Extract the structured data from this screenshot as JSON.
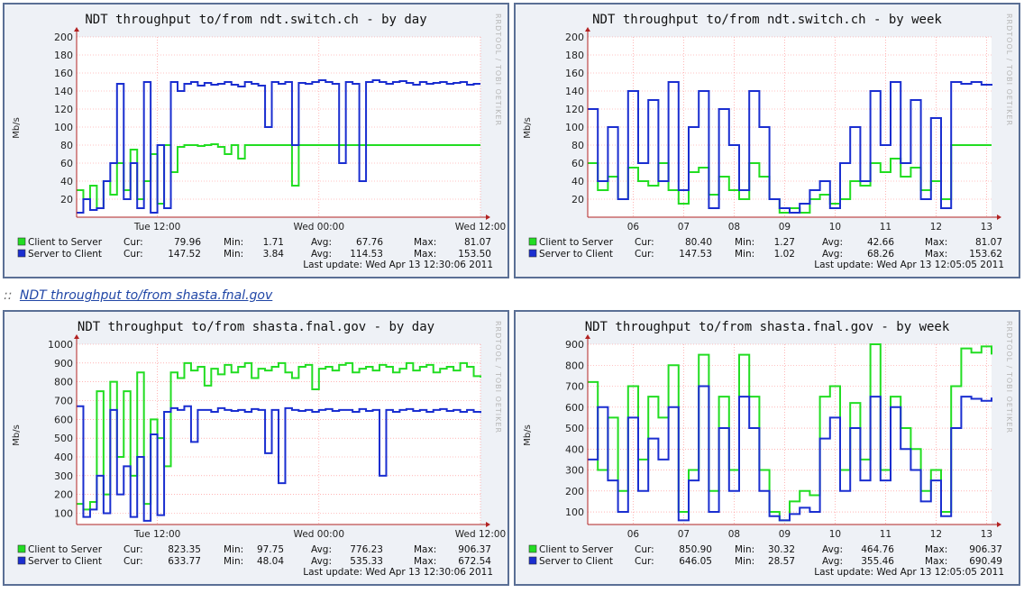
{
  "section_caption": {
    "prefix": "::",
    "link_text": "NDT throughput to/from shasta.fnal.gov"
  },
  "watermark": "RRDTOOL / TOBI OETIKER",
  "colors": {
    "client_to_server": "#22dd22",
    "server_to_client": "#1a2ed0",
    "grid": "#ff8888",
    "axis": "#b22222",
    "panel_bg": "#eef1f6",
    "plot_bg": "#ffffff",
    "border": "#5a6f95"
  },
  "chart_data": [
    {
      "id": "switch-day",
      "type": "line",
      "title": "NDT throughput to/from ndt.switch.ch - by day",
      "ylabel": "Mb/s",
      "ylim": [
        0,
        200
      ],
      "yticks": [
        20,
        40,
        60,
        80,
        100,
        120,
        140,
        160,
        180,
        200
      ],
      "xlim": [
        0,
        30
      ],
      "xticks": [
        {
          "x": 6,
          "label": "Tue 12:00"
        },
        {
          "x": 18,
          "label": "Wed 00:00"
        },
        {
          "x": 30,
          "label": "Wed 12:00"
        }
      ],
      "series": [
        {
          "name": "Client to Server",
          "color": "#22dd22",
          "cur": "79.96",
          "min": "1.71",
          "avg": "67.76",
          "max": "81.07",
          "x": [
            0,
            0.5,
            1,
            1.5,
            2,
            2.5,
            3,
            3.5,
            4,
            4.5,
            5,
            5.5,
            6,
            6.5,
            7,
            7.5,
            8,
            8.5,
            9,
            9.5,
            10,
            10.5,
            11,
            11.5,
            12,
            12.5,
            13,
            13.5,
            14,
            14.5,
            15,
            15.5,
            16,
            16.5,
            17,
            17.5,
            18,
            18.5,
            19,
            19.5,
            20,
            20.5,
            21,
            21.5,
            22,
            22.5,
            23,
            23.5,
            24,
            24.5,
            25,
            25.5,
            26,
            26.5,
            27,
            27.5,
            28,
            28.5,
            29,
            29.5,
            30
          ],
          "y": [
            30,
            20,
            35,
            10,
            40,
            25,
            60,
            30,
            75,
            20,
            40,
            70,
            15,
            80,
            50,
            78,
            80,
            80,
            79,
            80,
            81,
            78,
            70,
            80,
            65,
            80,
            80,
            80,
            80,
            80,
            80,
            80,
            35,
            80,
            80,
            80,
            80,
            80,
            80,
            80,
            80,
            80,
            80,
            80,
            80,
            80,
            80,
            80,
            80,
            80,
            80,
            80,
            80,
            80,
            80,
            80,
            80,
            80,
            80,
            80,
            80
          ]
        },
        {
          "name": "Server to Client",
          "color": "#1a2ed0",
          "cur": "147.52",
          "min": "3.84",
          "avg": "114.53",
          "max": "153.50",
          "x": [
            0,
            0.5,
            1,
            1.5,
            2,
            2.5,
            3,
            3.5,
            4,
            4.5,
            5,
            5.5,
            6,
            6.5,
            7,
            7.5,
            8,
            8.5,
            9,
            9.5,
            10,
            10.5,
            11,
            11.5,
            12,
            12.5,
            13,
            13.5,
            14,
            14.5,
            15,
            15.5,
            16,
            16.5,
            17,
            17.5,
            18,
            18.5,
            19,
            19.5,
            20,
            20.5,
            21,
            21.5,
            22,
            22.5,
            23,
            23.5,
            24,
            24.5,
            25,
            25.5,
            26,
            26.5,
            27,
            27.5,
            28,
            28.5,
            29,
            29.5,
            30
          ],
          "y": [
            5,
            20,
            8,
            10,
            40,
            60,
            148,
            20,
            60,
            10,
            150,
            5,
            80,
            10,
            150,
            140,
            148,
            150,
            146,
            149,
            147,
            148,
            150,
            147,
            145,
            150,
            148,
            146,
            100,
            150,
            148,
            150,
            80,
            149,
            148,
            150,
            152,
            150,
            148,
            60,
            150,
            148,
            40,
            150,
            152,
            150,
            148,
            150,
            151,
            149,
            147,
            150,
            148,
            149,
            150,
            148,
            149,
            150,
            147,
            148,
            148
          ]
        }
      ],
      "last_update": "Last update: Wed Apr 13 12:30:06 2011"
    },
    {
      "id": "switch-week",
      "type": "line",
      "title": "NDT throughput to/from ndt.switch.ch - by week",
      "ylabel": "Mb/s",
      "ylim": [
        0,
        200
      ],
      "yticks": [
        20,
        40,
        60,
        80,
        100,
        120,
        140,
        160,
        180,
        200
      ],
      "xlim": [
        5.1,
        13.1
      ],
      "xticks": [
        {
          "x": 6,
          "label": "06"
        },
        {
          "x": 7,
          "label": "07"
        },
        {
          "x": 8,
          "label": "08"
        },
        {
          "x": 9,
          "label": "09"
        },
        {
          "x": 10,
          "label": "10"
        },
        {
          "x": 11,
          "label": "11"
        },
        {
          "x": 12,
          "label": "12"
        },
        {
          "x": 13,
          "label": "13"
        }
      ],
      "series": [
        {
          "name": "Client to Server",
          "color": "#22dd22",
          "cur": "80.40",
          "min": "1.27",
          "avg": "42.66",
          "max": "81.07",
          "x": [
            5.1,
            5.3,
            5.5,
            5.7,
            5.9,
            6.1,
            6.3,
            6.5,
            6.7,
            6.9,
            7.1,
            7.3,
            7.5,
            7.7,
            7.9,
            8.1,
            8.3,
            8.5,
            8.7,
            8.9,
            9.1,
            9.3,
            9.5,
            9.7,
            9.9,
            10.1,
            10.3,
            10.5,
            10.7,
            10.9,
            11.1,
            11.3,
            11.5,
            11.7,
            11.9,
            12.1,
            12.3,
            12.5,
            12.7,
            12.9,
            13.1
          ],
          "y": [
            60,
            30,
            45,
            20,
            55,
            40,
            35,
            60,
            30,
            15,
            50,
            55,
            25,
            45,
            30,
            20,
            60,
            45,
            20,
            5,
            10,
            5,
            20,
            25,
            15,
            20,
            40,
            35,
            60,
            50,
            65,
            45,
            55,
            30,
            40,
            20,
            80,
            80,
            80,
            80,
            80
          ]
        },
        {
          "name": "Server to Client",
          "color": "#1a2ed0",
          "cur": "147.53",
          "min": "1.02",
          "avg": "68.26",
          "max": "153.62",
          "x": [
            5.1,
            5.3,
            5.5,
            5.7,
            5.9,
            6.1,
            6.3,
            6.5,
            6.7,
            6.9,
            7.1,
            7.3,
            7.5,
            7.7,
            7.9,
            8.1,
            8.3,
            8.5,
            8.7,
            8.9,
            9.1,
            9.3,
            9.5,
            9.7,
            9.9,
            10.1,
            10.3,
            10.5,
            10.7,
            10.9,
            11.1,
            11.3,
            11.5,
            11.7,
            11.9,
            12.1,
            12.3,
            12.5,
            12.7,
            12.9,
            13.1
          ],
          "y": [
            120,
            40,
            100,
            20,
            140,
            60,
            130,
            40,
            150,
            30,
            100,
            140,
            10,
            120,
            80,
            30,
            140,
            100,
            20,
            10,
            5,
            15,
            30,
            40,
            10,
            60,
            100,
            40,
            140,
            80,
            150,
            60,
            130,
            20,
            110,
            10,
            150,
            148,
            150,
            147,
            148
          ]
        }
      ],
      "last_update": "Last update: Wed Apr 13 12:05:05 2011"
    },
    {
      "id": "fnal-day",
      "type": "line",
      "title": "NDT throughput to/from shasta.fnal.gov - by day",
      "ylabel": "Mb/s",
      "ylim": [
        40,
        1000
      ],
      "yticks": [
        100,
        200,
        300,
        400,
        500,
        600,
        700,
        800,
        900,
        1000
      ],
      "xlim": [
        0,
        30
      ],
      "xticks": [
        {
          "x": 6,
          "label": "Tue 12:00"
        },
        {
          "x": 18,
          "label": "Wed 00:00"
        },
        {
          "x": 30,
          "label": "Wed 12:00"
        }
      ],
      "series": [
        {
          "name": "Client to Server",
          "color": "#22dd22",
          "cur": "823.35",
          "min": "97.75",
          "avg": "776.23",
          "max": "906.37",
          "x": [
            0,
            0.5,
            1,
            1.5,
            2,
            2.5,
            3,
            3.5,
            4,
            4.5,
            5,
            5.5,
            6,
            6.5,
            7,
            7.5,
            8,
            8.5,
            9,
            9.5,
            10,
            10.5,
            11,
            11.5,
            12,
            12.5,
            13,
            13.5,
            14,
            14.5,
            15,
            15.5,
            16,
            16.5,
            17,
            17.5,
            18,
            18.5,
            19,
            19.5,
            20,
            20.5,
            21,
            21.5,
            22,
            22.5,
            23,
            23.5,
            24,
            24.5,
            25,
            25.5,
            26,
            26.5,
            27,
            27.5,
            28,
            28.5,
            29,
            29.5,
            30
          ],
          "y": [
            150,
            120,
            160,
            750,
            200,
            800,
            400,
            750,
            300,
            850,
            150,
            600,
            500,
            350,
            850,
            820,
            900,
            860,
            880,
            780,
            870,
            840,
            890,
            850,
            880,
            900,
            820,
            870,
            860,
            880,
            900,
            850,
            820,
            880,
            890,
            760,
            870,
            880,
            860,
            890,
            900,
            850,
            870,
            880,
            860,
            890,
            880,
            850,
            870,
            900,
            860,
            880,
            890,
            850,
            870,
            880,
            860,
            900,
            880,
            830,
            823
          ]
        },
        {
          "name": "Server to Client",
          "color": "#1a2ed0",
          "cur": "633.77",
          "min": "48.04",
          "avg": "535.33",
          "max": "672.54",
          "x": [
            0,
            0.5,
            1,
            1.5,
            2,
            2.5,
            3,
            3.5,
            4,
            4.5,
            5,
            5.5,
            6,
            6.5,
            7,
            7.5,
            8,
            8.5,
            9,
            9.5,
            10,
            10.5,
            11,
            11.5,
            12,
            12.5,
            13,
            13.5,
            14,
            14.5,
            15,
            15.5,
            16,
            16.5,
            17,
            17.5,
            18,
            18.5,
            19,
            19.5,
            20,
            20.5,
            21,
            21.5,
            22,
            22.5,
            23,
            23.5,
            24,
            24.5,
            25,
            25.5,
            26,
            26.5,
            27,
            27.5,
            28,
            28.5,
            29,
            29.5,
            30
          ],
          "y": [
            670,
            80,
            120,
            300,
            100,
            650,
            200,
            350,
            80,
            400,
            60,
            520,
            90,
            640,
            660,
            650,
            670,
            480,
            650,
            650,
            640,
            660,
            650,
            645,
            650,
            640,
            655,
            650,
            420,
            650,
            260,
            660,
            650,
            645,
            650,
            640,
            650,
            655,
            645,
            650,
            650,
            640,
            655,
            645,
            650,
            300,
            650,
            640,
            650,
            655,
            645,
            650,
            640,
            650,
            655,
            645,
            650,
            640,
            650,
            640,
            634
          ]
        }
      ],
      "last_update": "Last update: Wed Apr 13 12:30:06 2011"
    },
    {
      "id": "fnal-week",
      "type": "line",
      "title": "NDT throughput to/from shasta.fnal.gov - by week",
      "ylabel": "Mb/s",
      "ylim": [
        40,
        900
      ],
      "yticks": [
        100,
        200,
        300,
        400,
        500,
        600,
        700,
        800,
        900
      ],
      "xlim": [
        5.1,
        13.1
      ],
      "xticks": [
        {
          "x": 6,
          "label": "06"
        },
        {
          "x": 7,
          "label": "07"
        },
        {
          "x": 8,
          "label": "08"
        },
        {
          "x": 9,
          "label": "09"
        },
        {
          "x": 10,
          "label": "10"
        },
        {
          "x": 11,
          "label": "11"
        },
        {
          "x": 12,
          "label": "12"
        },
        {
          "x": 13,
          "label": "13"
        }
      ],
      "series": [
        {
          "name": "Client to Server",
          "color": "#22dd22",
          "cur": "850.90",
          "min": "30.32",
          "avg": "464.76",
          "max": "906.37",
          "x": [
            5.1,
            5.3,
            5.5,
            5.7,
            5.9,
            6.1,
            6.3,
            6.5,
            6.7,
            6.9,
            7.1,
            7.3,
            7.5,
            7.7,
            7.9,
            8.1,
            8.3,
            8.5,
            8.7,
            8.9,
            9.1,
            9.3,
            9.5,
            9.7,
            9.9,
            10.1,
            10.3,
            10.5,
            10.7,
            10.9,
            11.1,
            11.3,
            11.5,
            11.7,
            11.9,
            12.1,
            12.3,
            12.5,
            12.7,
            12.9,
            13.1
          ],
          "y": [
            720,
            300,
            550,
            200,
            700,
            350,
            650,
            550,
            800,
            100,
            300,
            850,
            200,
            650,
            300,
            850,
            650,
            300,
            100,
            60,
            150,
            200,
            180,
            650,
            700,
            300,
            620,
            350,
            900,
            300,
            650,
            500,
            400,
            200,
            300,
            100,
            700,
            880,
            860,
            890,
            851
          ]
        },
        {
          "name": "Server to Client",
          "color": "#1a2ed0",
          "cur": "646.05",
          "min": "28.57",
          "avg": "355.46",
          "max": "690.49",
          "x": [
            5.1,
            5.3,
            5.5,
            5.7,
            5.9,
            6.1,
            6.3,
            6.5,
            6.7,
            6.9,
            7.1,
            7.3,
            7.5,
            7.7,
            7.9,
            8.1,
            8.3,
            8.5,
            8.7,
            8.9,
            9.1,
            9.3,
            9.5,
            9.7,
            9.9,
            10.1,
            10.3,
            10.5,
            10.7,
            10.9,
            11.1,
            11.3,
            11.5,
            11.7,
            11.9,
            12.1,
            12.3,
            12.5,
            12.7,
            12.9,
            13.1
          ],
          "y": [
            350,
            600,
            250,
            100,
            550,
            200,
            450,
            350,
            600,
            60,
            250,
            700,
            100,
            500,
            200,
            650,
            500,
            200,
            80,
            60,
            90,
            120,
            100,
            450,
            550,
            200,
            500,
            250,
            650,
            250,
            600,
            400,
            300,
            150,
            250,
            80,
            500,
            650,
            640,
            630,
            646
          ]
        }
      ],
      "last_update": "Last update: Wed Apr 13 12:05:05 2011"
    }
  ],
  "legend_labels": {
    "cur": "Cur:",
    "min": "Min:",
    "avg": "Avg:",
    "max": "Max:"
  }
}
